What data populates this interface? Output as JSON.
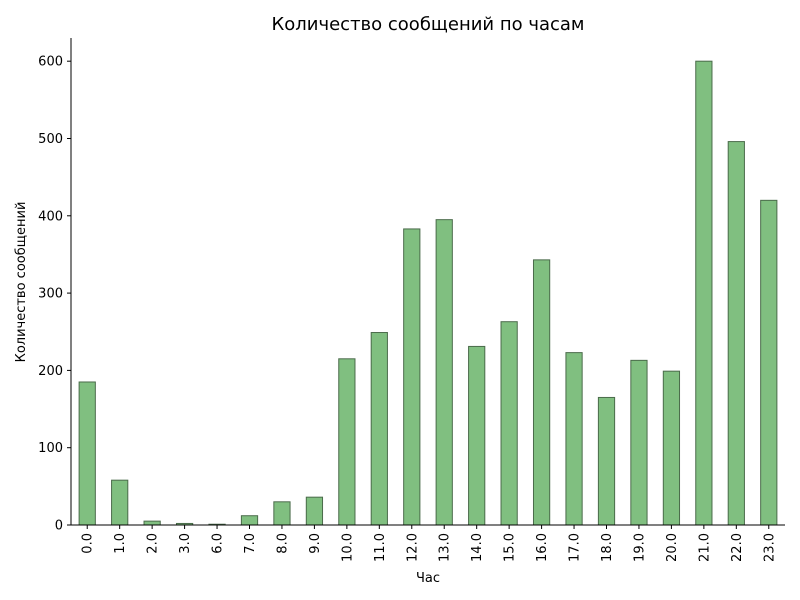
{
  "chart_data": {
    "type": "bar",
    "title": "Количество сообщений по часам",
    "xlabel": "Час",
    "ylabel": "Количество сообщений",
    "categories": [
      "0.0",
      "1.0",
      "2.0",
      "3.0",
      "6.0",
      "7.0",
      "8.0",
      "9.0",
      "10.0",
      "11.0",
      "12.0",
      "13.0",
      "14.0",
      "15.0",
      "16.0",
      "17.0",
      "18.0",
      "19.0",
      "20.0",
      "21.0",
      "22.0",
      "23.0"
    ],
    "values": [
      185,
      58,
      5,
      2,
      1,
      12,
      30,
      36,
      215,
      249,
      383,
      395,
      231,
      263,
      343,
      223,
      165,
      213,
      199,
      600,
      496,
      420
    ],
    "ylim": [
      0,
      630
    ],
    "yticks": [
      0,
      100,
      200,
      300,
      400,
      500,
      600
    ],
    "ytick_labels": [
      "0",
      "100",
      "200",
      "300",
      "400",
      "500",
      "600"
    ],
    "grid": false,
    "legend": "none",
    "bar_color": "#80bf80",
    "bar_edge_color": "#4a6b4a"
  }
}
